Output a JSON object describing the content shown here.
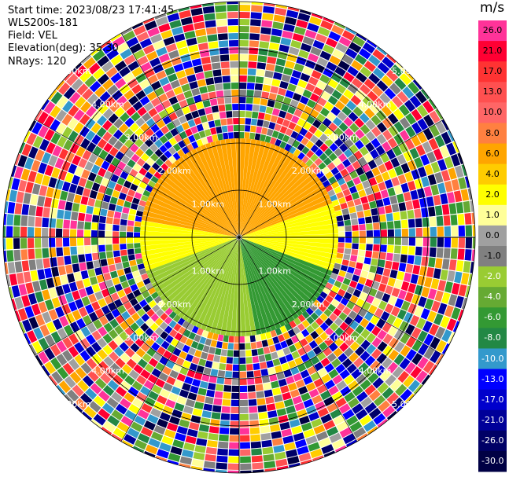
{
  "header": {
    "start_time": "Start time: 2023/08/23 17:41:45",
    "station": "WLS200s-181",
    "field": "Field: VEL",
    "elevation": "Elevation(deg): 35.30",
    "nrays": "NRays: 120"
  },
  "colorbar": {
    "unit": "m/s",
    "bins": [
      {
        "label": "26.0",
        "color": "#ff3399"
      },
      {
        "label": "21.0",
        "color": "#ff0033"
      },
      {
        "label": "17.0",
        "color": "#ff3333"
      },
      {
        "label": "13.0",
        "color": "#ff5050"
      },
      {
        "label": "10.0",
        "color": "#ff6666"
      },
      {
        "label": "8.0",
        "color": "#ff8040"
      },
      {
        "label": "6.0",
        "color": "#ffa500"
      },
      {
        "label": "4.0",
        "color": "#ffcc00"
      },
      {
        "label": "2.0",
        "color": "#ffff00"
      },
      {
        "label": "1.0",
        "color": "#ffff99"
      },
      {
        "label": "0.0",
        "color": "#a0a0a0"
      },
      {
        "label": "-1.0",
        "color": "#808080"
      },
      {
        "label": "-2.0",
        "color": "#99cc33"
      },
      {
        "label": "-4.0",
        "color": "#66aa33"
      },
      {
        "label": "-6.0",
        "color": "#339933"
      },
      {
        "label": "-8.0",
        "color": "#228844"
      },
      {
        "label": "-10.0",
        "color": "#3399cc"
      },
      {
        "label": "-13.0",
        "color": "#0000ff"
      },
      {
        "label": "-17.0",
        "color": "#0000cc"
      },
      {
        "label": "-21.0",
        "color": "#000099"
      },
      {
        "label": "-26.0",
        "color": "#000066"
      },
      {
        "label": "-30.0",
        "color": "#000044"
      }
    ]
  },
  "range_rings": [
    {
      "label": "1.00km"
    },
    {
      "label": "2.00km"
    },
    {
      "label": "3.00km"
    },
    {
      "label": "4.00km"
    },
    {
      "label": "5.00km"
    }
  ],
  "chart_data": {
    "type": "heatmap",
    "projection": "polar PPI scan",
    "field": "VEL",
    "unit": "m/s",
    "nrays": 120,
    "range_max_km": 5.0,
    "near_field_sectors": [
      {
        "azimuth_from_deg": 280,
        "azimuth_to_deg": 70,
        "value": 6.0
      },
      {
        "azimuth_from_deg": 250,
        "azimuth_to_deg": 280,
        "value": 2.0
      },
      {
        "azimuth_from_deg": 70,
        "azimuth_to_deg": 110,
        "value": 2.0
      },
      {
        "azimuth_from_deg": 110,
        "azimuth_to_deg": 170,
        "value": -6.0
      },
      {
        "azimuth_from_deg": 170,
        "azimuth_to_deg": 250,
        "value": -2.0
      }
    ],
    "near_field_max_km": 2.1,
    "far_field": "noise (random velocities)"
  }
}
